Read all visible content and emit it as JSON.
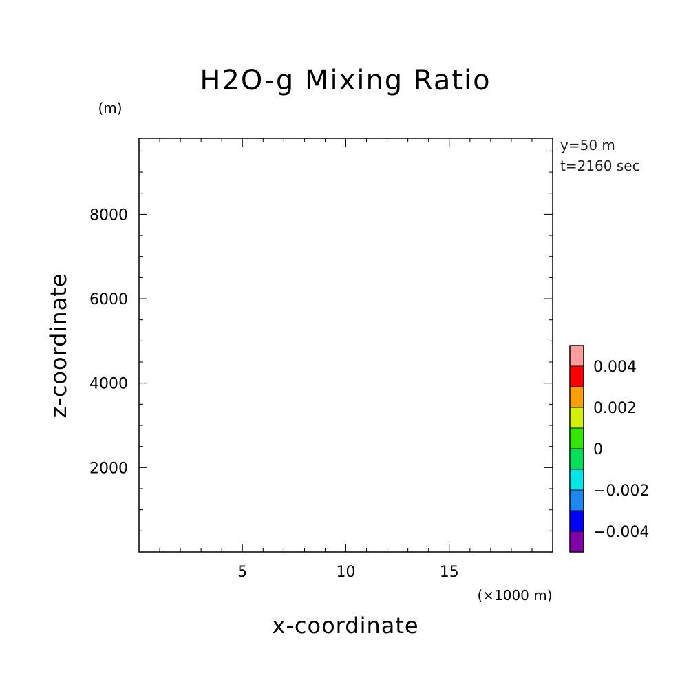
{
  "chart_data": {
    "type": "heatmap",
    "title": "H2O-g Mixing Ratio",
    "xlabel": "x-coordinate",
    "ylabel": "z-coordinate",
    "x_unit": "(×1000 m)",
    "y_unit": "(m)",
    "xlim": [
      0,
      20
    ],
    "ylim": [
      0,
      9800
    ],
    "x_ticks": [
      5,
      10,
      15
    ],
    "y_ticks": [
      2000,
      4000,
      6000,
      8000
    ],
    "x_minor_step": 1,
    "y_minor_step": 500,
    "annotations": [
      "y=50 m",
      "t=2160 sec"
    ],
    "grid": false,
    "plot_values": [],
    "colorbar": {
      "levels": [
        -0.005,
        -0.004,
        -0.003,
        -0.002,
        -0.001,
        0,
        0.001,
        0.002,
        0.003,
        0.004,
        0.005
      ],
      "colors": [
        "#7f00a6",
        "#0000ff",
        "#1e88ee",
        "#00e6e6",
        "#00e05a",
        "#33e600",
        "#d2f000",
        "#ffa000",
        "#ff0000",
        "#ff9c9c"
      ],
      "tick_values": [
        -0.004,
        -0.002,
        0,
        0.002,
        0.004
      ],
      "tick_labels": [
        "−0.004",
        "−0.002",
        "0",
        "0.002",
        "0.004"
      ]
    }
  }
}
